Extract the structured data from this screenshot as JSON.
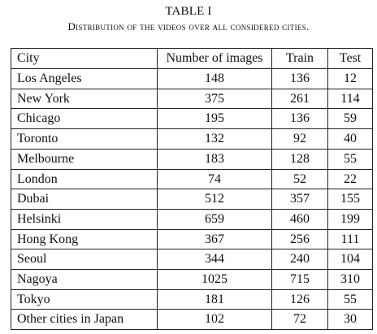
{
  "caption": {
    "title": "TABLE I",
    "subtitle": "Distribution of the videos over all considered cities."
  },
  "table": {
    "headers": {
      "city": "City",
      "images": "Number of images",
      "train": "Train",
      "test": "Test"
    },
    "rows": [
      {
        "city": "Los Angeles",
        "images": "148",
        "train": "136",
        "test": "12"
      },
      {
        "city": "New York",
        "images": "375",
        "train": "261",
        "test": "114"
      },
      {
        "city": "Chicago",
        "images": "195",
        "train": "136",
        "test": "59"
      },
      {
        "city": "Toronto",
        "images": "132",
        "train": "92",
        "test": "40"
      },
      {
        "city": "Melbourne",
        "images": "183",
        "train": "128",
        "test": "55"
      },
      {
        "city": "London",
        "images": "74",
        "train": "52",
        "test": "22"
      },
      {
        "city": "Dubai",
        "images": "512",
        "train": "357",
        "test": "155"
      },
      {
        "city": "Helsinki",
        "images": "659",
        "train": "460",
        "test": "199"
      },
      {
        "city": "Hong Kong",
        "images": "367",
        "train": "256",
        "test": "111"
      },
      {
        "city": "Seoul",
        "images": "344",
        "train": "240",
        "test": "104"
      },
      {
        "city": "Nagoya",
        "images": "1025",
        "train": "715",
        "test": "310"
      },
      {
        "city": "Tokyo",
        "images": "181",
        "train": "126",
        "test": "55"
      },
      {
        "city": "Other cities in Japan",
        "images": "102",
        "train": "72",
        "test": "30"
      }
    ]
  }
}
